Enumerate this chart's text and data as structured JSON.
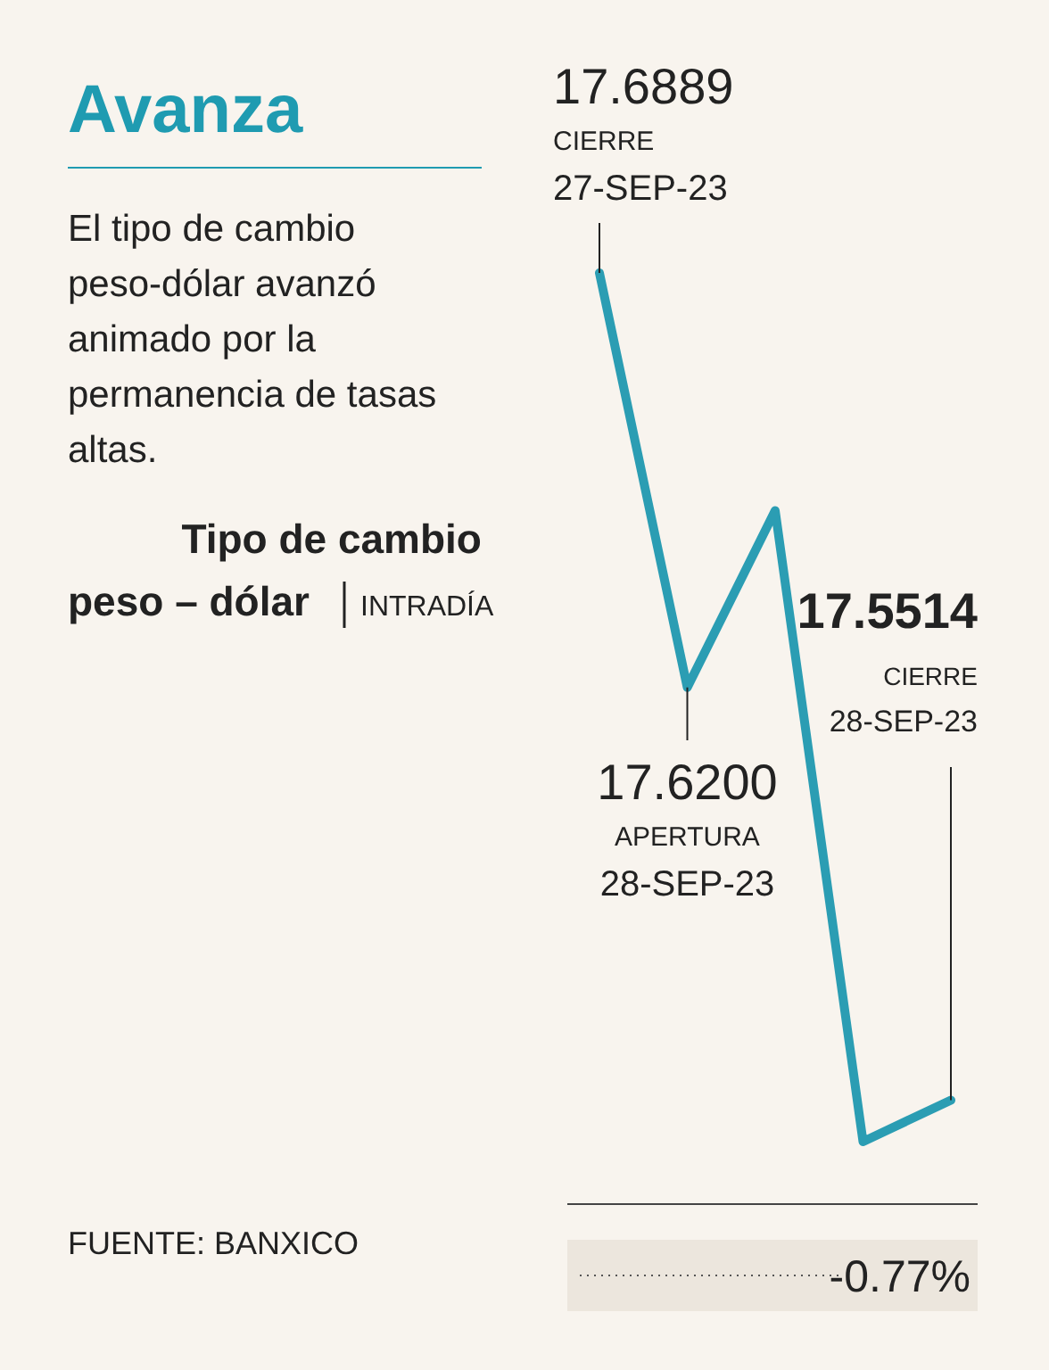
{
  "chart_data": {
    "type": "line",
    "title": "Avanza",
    "subtitle": "El tipo de cambio peso-dólar avanzó animado por la permanencia de tasas altas.",
    "categories": [
      null,
      null,
      null,
      null,
      null
    ],
    "series": [
      {
        "color": "#2b9db3",
        "values": [
          17.6889,
          17.62,
          17.6494,
          17.5445,
          17.5514
        ],
        "value_labels": [
          "17.6889",
          "17.6200",
          null,
          null,
          null
        ]
      }
    ],
    "marker": "none",
    "line_style": "solid",
    "annotations": [
      "CIERRE\n27-SEP-23",
      "APERTURA\n28-SEP-23",
      "17.5514",
      "CIERRE\n28-SEP-23",
      "Tipo de cambio\npeso – dólar",
      "INTRADÍA",
      "FUENTE: BANXICO",
      "-0.77%"
    ]
  }
}
